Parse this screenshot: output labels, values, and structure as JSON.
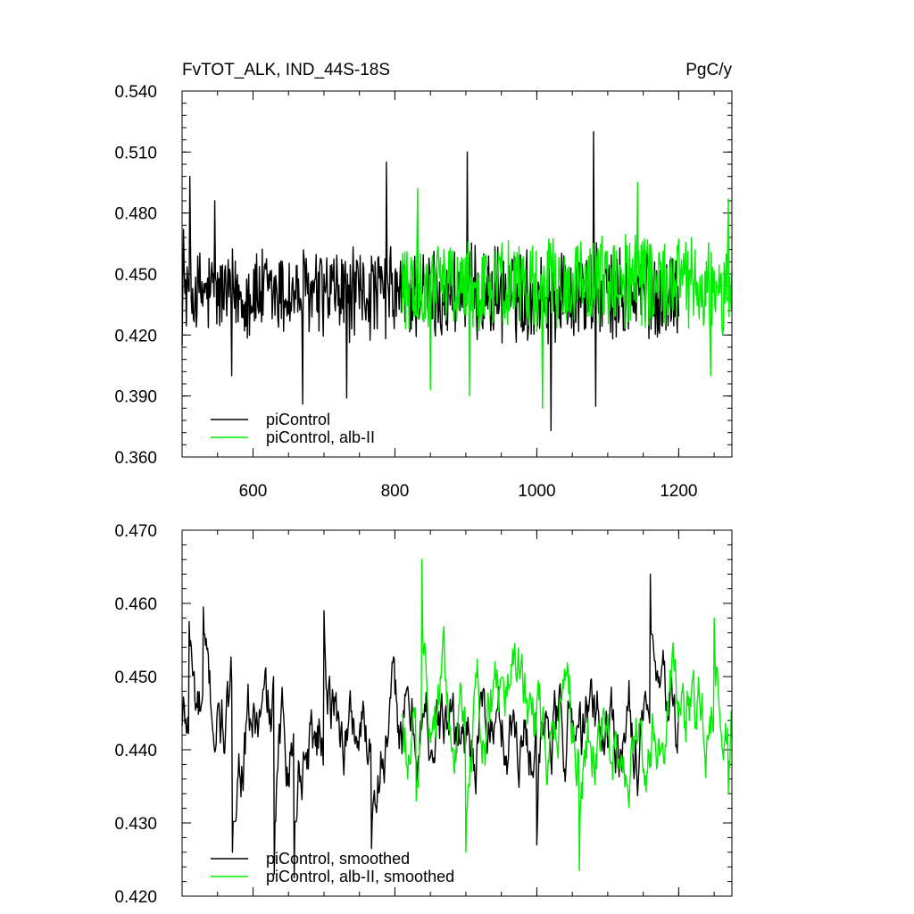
{
  "header": {
    "title_left": "FvTOT_ALK, IND_44S-18S",
    "title_right": "PgC/y"
  },
  "colors": {
    "picontrol": "#000000",
    "alb_ii": "#00ee00",
    "axis": "#000000"
  },
  "chart_data": [
    {
      "type": "line",
      "title": "FvTOT_ALK, IND_44S-18S",
      "units": "PgC/y",
      "xlim": [
        500,
        1275
      ],
      "ylim": [
        0.36,
        0.54
      ],
      "x_ticks": [
        600,
        800,
        1000,
        1200
      ],
      "x_tick_labels": [
        "600",
        "800",
        "1000",
        "1200"
      ],
      "y_ticks": [
        0.36,
        0.39,
        0.42,
        0.45,
        0.48,
        0.51,
        0.54
      ],
      "y_tick_labels": [
        "0.360",
        "0.390",
        "0.420",
        "0.450",
        "0.480",
        "0.510",
        "0.540"
      ],
      "legend_position": "bottom-left",
      "grid": false,
      "series": [
        {
          "name": "piControl",
          "color": "#000000",
          "x_range": [
            500,
            1200
          ],
          "mean": 0.44,
          "amplitude": 0.02,
          "annotated_points": [
            [
              502,
              0.472
            ],
            [
              511,
              0.498
            ],
            [
              546,
              0.486
            ],
            [
              570,
              0.4
            ],
            [
              670,
              0.386
            ],
            [
              732,
              0.389
            ],
            [
              788,
              0.505
            ],
            [
              902,
              0.51
            ],
            [
              1020,
              0.373
            ],
            [
              1080,
              0.52
            ],
            [
              1083,
              0.385
            ]
          ]
        },
        {
          "name": "piControl, alb-II",
          "color": "#00ee00",
          "x_range": [
            810,
            1275
          ],
          "mean": 0.445,
          "amplitude": 0.02,
          "annotated_points": [
            [
              832,
              0.492
            ],
            [
              850,
              0.393
            ],
            [
              905,
              0.39
            ],
            [
              1008,
              0.384
            ],
            [
              1142,
              0.495
            ],
            [
              1245,
              0.4
            ],
            [
              1270,
              0.487
            ]
          ]
        }
      ]
    },
    {
      "type": "line",
      "xlim": [
        500,
        1275
      ],
      "ylim": [
        0.42,
        0.47
      ],
      "x_ticks": [
        600,
        800,
        1000,
        1200
      ],
      "x_tick_labels": [],
      "y_ticks": [
        0.42,
        0.43,
        0.44,
        0.45,
        0.46,
        0.47
      ],
      "y_tick_labels": [
        "0.420",
        "0.430",
        "0.440",
        "0.450",
        "0.460",
        "0.470"
      ],
      "legend_position": "bottom-left",
      "grid": false,
      "series": [
        {
          "name": "piControl, smoothed",
          "color": "#000000",
          "x_range": [
            500,
            1200
          ],
          "mean": 0.443,
          "amplitude": 0.008,
          "annotated_points": [
            [
              510,
              0.4575
            ],
            [
              530,
              0.4595
            ],
            [
              571,
              0.426
            ],
            [
              630,
              0.423
            ],
            [
              658,
              0.4225
            ],
            [
              700,
              0.459
            ],
            [
              767,
              0.4265
            ],
            [
              1000,
              0.427
            ],
            [
              1160,
              0.464
            ],
            [
              1200,
              0.4455
            ]
          ]
        },
        {
          "name": "piControl, alb-II, smoothed",
          "color": "#00ee00",
          "x_range": [
            810,
            1275
          ],
          "mean": 0.444,
          "amplitude": 0.008,
          "annotated_points": [
            [
              830,
              0.433
            ],
            [
              838,
              0.466
            ],
            [
              900,
              0.426
            ],
            [
              1060,
              0.4235
            ],
            [
              1250,
              0.458
            ],
            [
              1270,
              0.434
            ]
          ]
        }
      ]
    }
  ]
}
